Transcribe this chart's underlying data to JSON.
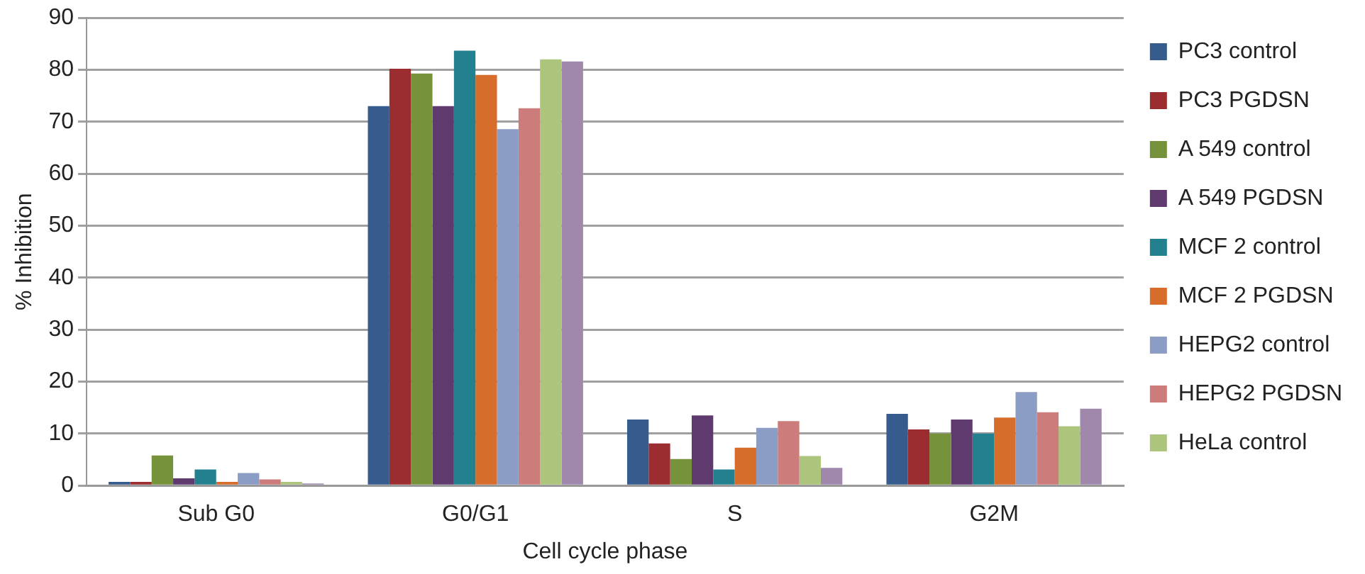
{
  "chart_data": {
    "type": "bar",
    "xlabel": "Cell cycle phase",
    "ylabel": "% Inhibition",
    "categories": [
      "Sub G0",
      "G0/G1",
      "S",
      "G2M"
    ],
    "ylim": [
      0,
      90
    ],
    "yticks": [
      0,
      10,
      20,
      30,
      40,
      50,
      60,
      70,
      80,
      90
    ],
    "grid": "y",
    "legend": "right",
    "series": [
      {
        "name": "PC3 control",
        "color": "#365c8d",
        "values": [
          0.7,
          73.0,
          12.7,
          13.8
        ]
      },
      {
        "name": "PC3 PGDSN",
        "color": "#9b2d30",
        "values": [
          0.7,
          80.2,
          8.1,
          10.8
        ]
      },
      {
        "name": "A 549 control",
        "color": "#76933c",
        "values": [
          5.8,
          79.3,
          5.1,
          10.0
        ]
      },
      {
        "name": "A 549 PGDSN",
        "color": "#5f3a6e",
        "values": [
          1.4,
          73.0,
          13.5,
          12.7
        ]
      },
      {
        "name": "MCF 2 control",
        "color": "#23808f",
        "values": [
          3.1,
          83.7,
          3.1,
          10.0
        ]
      },
      {
        "name": "MCF 2 PGDSN",
        "color": "#d76d2a",
        "values": [
          0.7,
          79.0,
          7.3,
          13.1
        ]
      },
      {
        "name": "HEPG2 control",
        "color": "#8c9dc5",
        "values": [
          2.4,
          68.6,
          11.1,
          18.0
        ]
      },
      {
        "name": "HEPG2 PGDSN",
        "color": "#cc7d7b",
        "values": [
          1.2,
          72.6,
          12.4,
          14.1
        ]
      },
      {
        "name": "HeLa control",
        "color": "#adc47c",
        "values": [
          0.7,
          82.0,
          5.7,
          11.4
        ]
      },
      {
        "color": "#9f88ab",
        "values": [
          0.4,
          81.6,
          3.4,
          14.8
        ]
      }
    ]
  }
}
